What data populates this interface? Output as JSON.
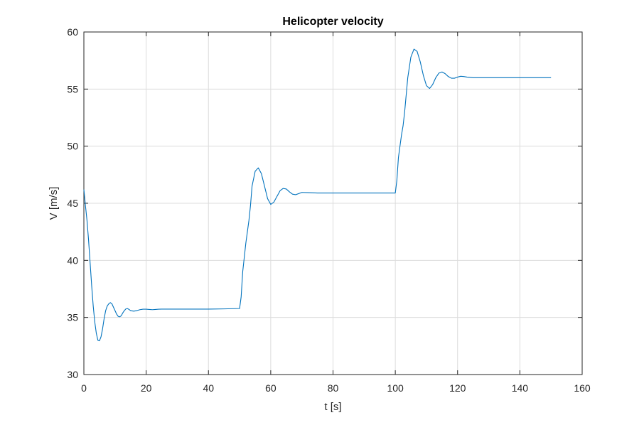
{
  "chart_data": {
    "type": "line",
    "title": "Helicopter velocity",
    "xlabel": "t [s]",
    "ylabel": "V [m/s]",
    "xlim": [
      0,
      160
    ],
    "ylim": [
      30,
      60
    ],
    "xticks": [
      0,
      20,
      40,
      60,
      80,
      100,
      120,
      140,
      160
    ],
    "yticks": [
      30,
      35,
      40,
      45,
      50,
      55,
      60
    ],
    "grid": true,
    "line_color": "#0072BD",
    "series": [
      {
        "x": [
          0,
          0.5,
          1,
          1.5,
          2,
          2.5,
          3,
          3.5,
          4,
          4.5,
          5,
          5.5,
          6,
          6.5,
          7,
          7.5,
          8,
          8.5,
          9,
          9.5,
          10,
          10.5,
          11,
          11.5,
          12,
          12.5,
          13,
          13.5,
          14,
          14.5,
          15,
          16,
          17,
          18,
          19,
          20,
          21,
          22,
          23,
          24,
          25,
          26,
          27,
          28,
          30,
          35,
          40,
          45,
          50,
          50.5,
          51,
          52,
          53,
          53.5,
          54,
          55,
          56,
          57,
          58,
          59,
          60,
          61,
          62,
          63,
          64,
          65,
          66,
          67,
          68,
          69,
          70,
          72,
          75,
          80,
          90,
          100,
          100.5,
          101,
          102,
          102.5,
          103,
          104,
          105,
          106,
          107,
          108,
          109,
          110,
          111,
          112,
          113,
          114,
          115,
          116,
          117,
          118,
          119,
          120,
          121,
          122,
          123,
          125,
          130,
          140,
          150
        ],
        "y": [
          46.2,
          44.8,
          43.5,
          41.8,
          39.8,
          37.8,
          36.0,
          34.6,
          33.6,
          33.0,
          32.95,
          33.3,
          34.0,
          34.9,
          35.6,
          36.0,
          36.2,
          36.3,
          36.2,
          35.9,
          35.6,
          35.3,
          35.1,
          35.05,
          35.15,
          35.4,
          35.6,
          35.75,
          35.78,
          35.7,
          35.6,
          35.55,
          35.6,
          35.68,
          35.72,
          35.72,
          35.7,
          35.68,
          35.7,
          35.72,
          35.73,
          35.73,
          35.73,
          35.73,
          35.73,
          35.73,
          35.73,
          35.75,
          35.78,
          36.8,
          39.0,
          41.5,
          43.5,
          44.8,
          46.5,
          47.8,
          48.1,
          47.6,
          46.5,
          45.4,
          44.9,
          45.1,
          45.6,
          46.1,
          46.3,
          46.25,
          46.0,
          45.8,
          45.75,
          45.85,
          45.95,
          45.93,
          45.9,
          45.9,
          45.9,
          45.9,
          47.0,
          49.0,
          51.0,
          51.8,
          53.0,
          56.0,
          57.8,
          58.5,
          58.3,
          57.4,
          56.2,
          55.3,
          55.05,
          55.4,
          56.0,
          56.4,
          56.5,
          56.35,
          56.1,
          55.95,
          55.95,
          56.05,
          56.12,
          56.1,
          56.05,
          56.0,
          56.0,
          56.0,
          56.0
        ]
      }
    ]
  }
}
